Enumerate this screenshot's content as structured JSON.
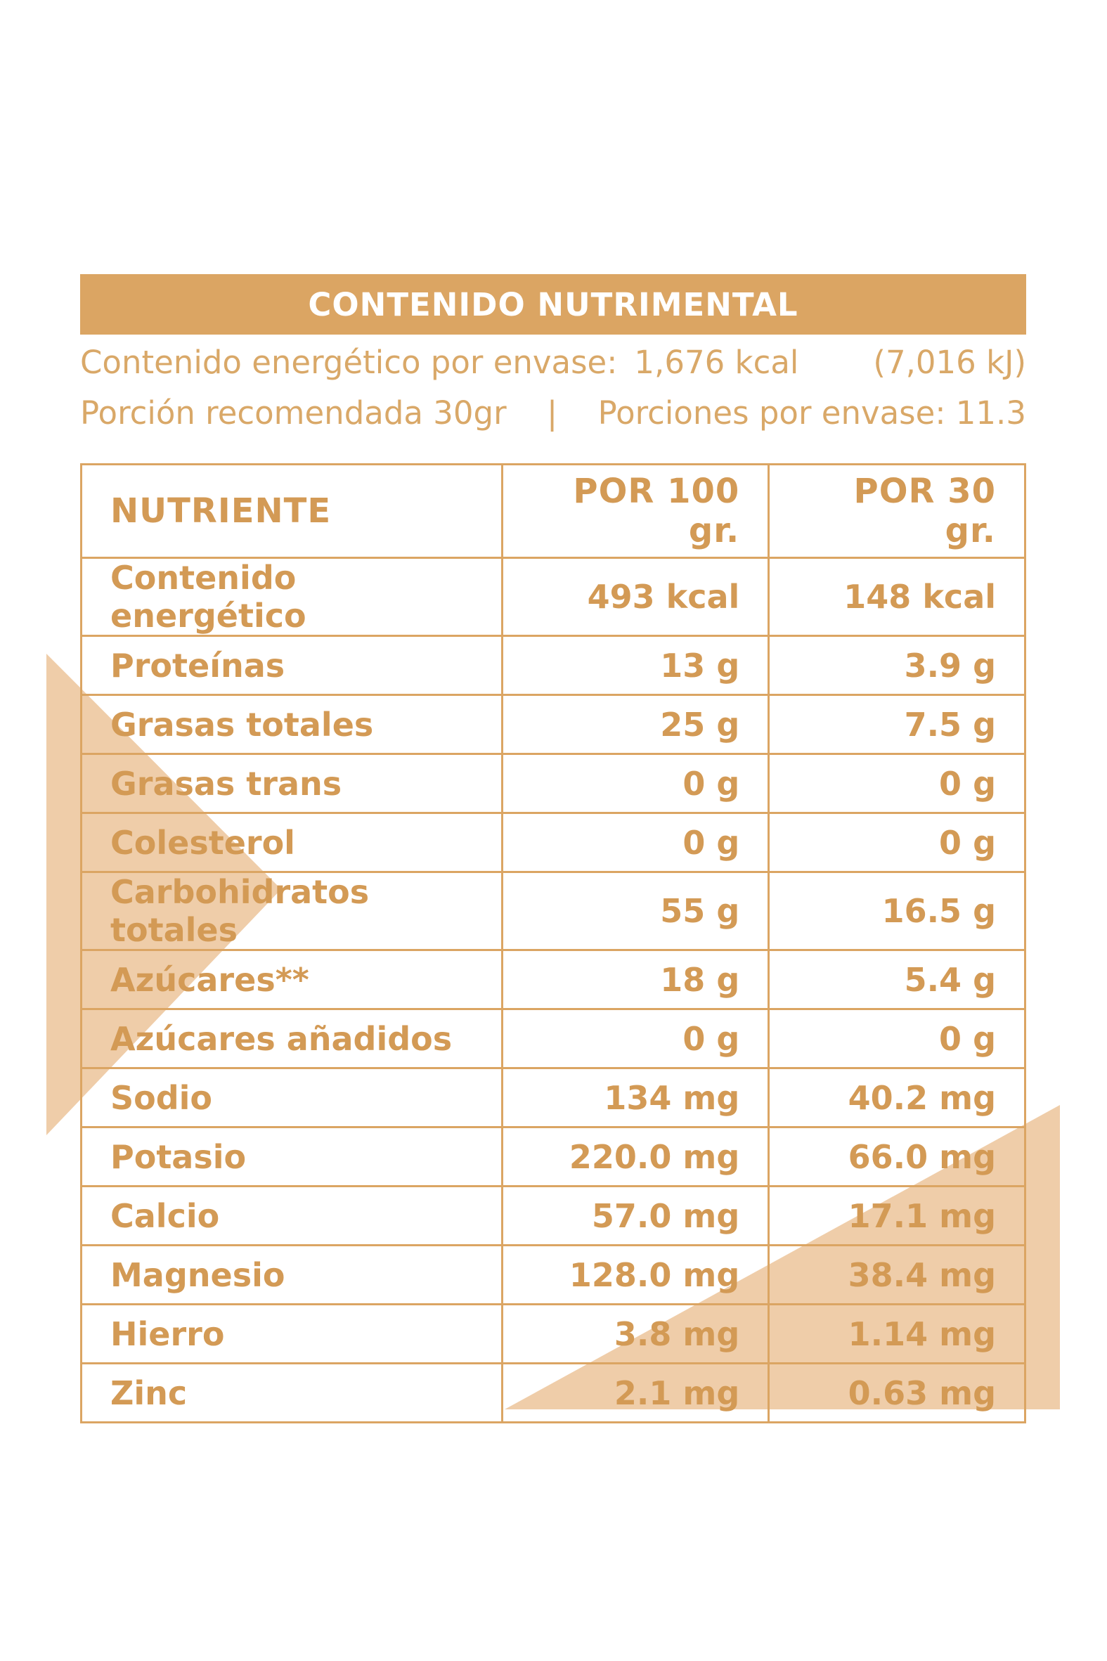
{
  "colors": {
    "accent": "#dba563",
    "text": "#d39a55",
    "light_text": "#d9a868",
    "triangle": "#efcda9",
    "background": "#ffffff"
  },
  "header": {
    "title": "CONTENIDO NUTRIMENTAL"
  },
  "summary": {
    "energy_label": "Contenido energético por envase:",
    "energy_kcal": "1,676 kcal",
    "energy_kj": "(7,016 kJ)",
    "portion": "Porción recomendada 30gr",
    "separator": "|",
    "servings": "Porciones por envase: 11.3"
  },
  "table": {
    "headers": [
      "NUTRIENTE",
      "POR 100 gr.",
      "POR 30 gr."
    ],
    "rows": [
      {
        "name": "Contenido energético",
        "per100": "493 kcal",
        "per30": "148 kcal"
      },
      {
        "name": "Proteínas",
        "per100": "13 g",
        "per30": "3.9 g"
      },
      {
        "name": "Grasas totales",
        "per100": "25 g",
        "per30": "7.5 g"
      },
      {
        "name": "Grasas trans",
        "per100": "0 g",
        "per30": "0 g"
      },
      {
        "name": "Colesterol",
        "per100": "0 g",
        "per30": "0 g"
      },
      {
        "name": "Carbohidratos totales",
        "per100": "55 g",
        "per30": "16.5 g"
      },
      {
        "name": "Azúcares**",
        "per100": "18 g",
        "per30": "5.4 g"
      },
      {
        "name": "Azúcares añadidos",
        "per100": "0 g",
        "per30": "0 g"
      },
      {
        "name": "Sodio",
        "per100": "134 mg",
        "per30": "40.2 mg"
      },
      {
        "name": "Potasio",
        "per100": "220.0 mg",
        "per30": "66.0 mg"
      },
      {
        "name": "Calcio",
        "per100": "57.0 mg",
        "per30": "17.1 mg"
      },
      {
        "name": "Magnesio",
        "per100": "128.0 mg",
        "per30": "38.4 mg"
      },
      {
        "name": "Hierro",
        "per100": "3.8 mg",
        "per30": "1.14 mg"
      },
      {
        "name": "Zinc",
        "per100": "2.1 mg",
        "per30": "0.63 mg"
      }
    ]
  }
}
